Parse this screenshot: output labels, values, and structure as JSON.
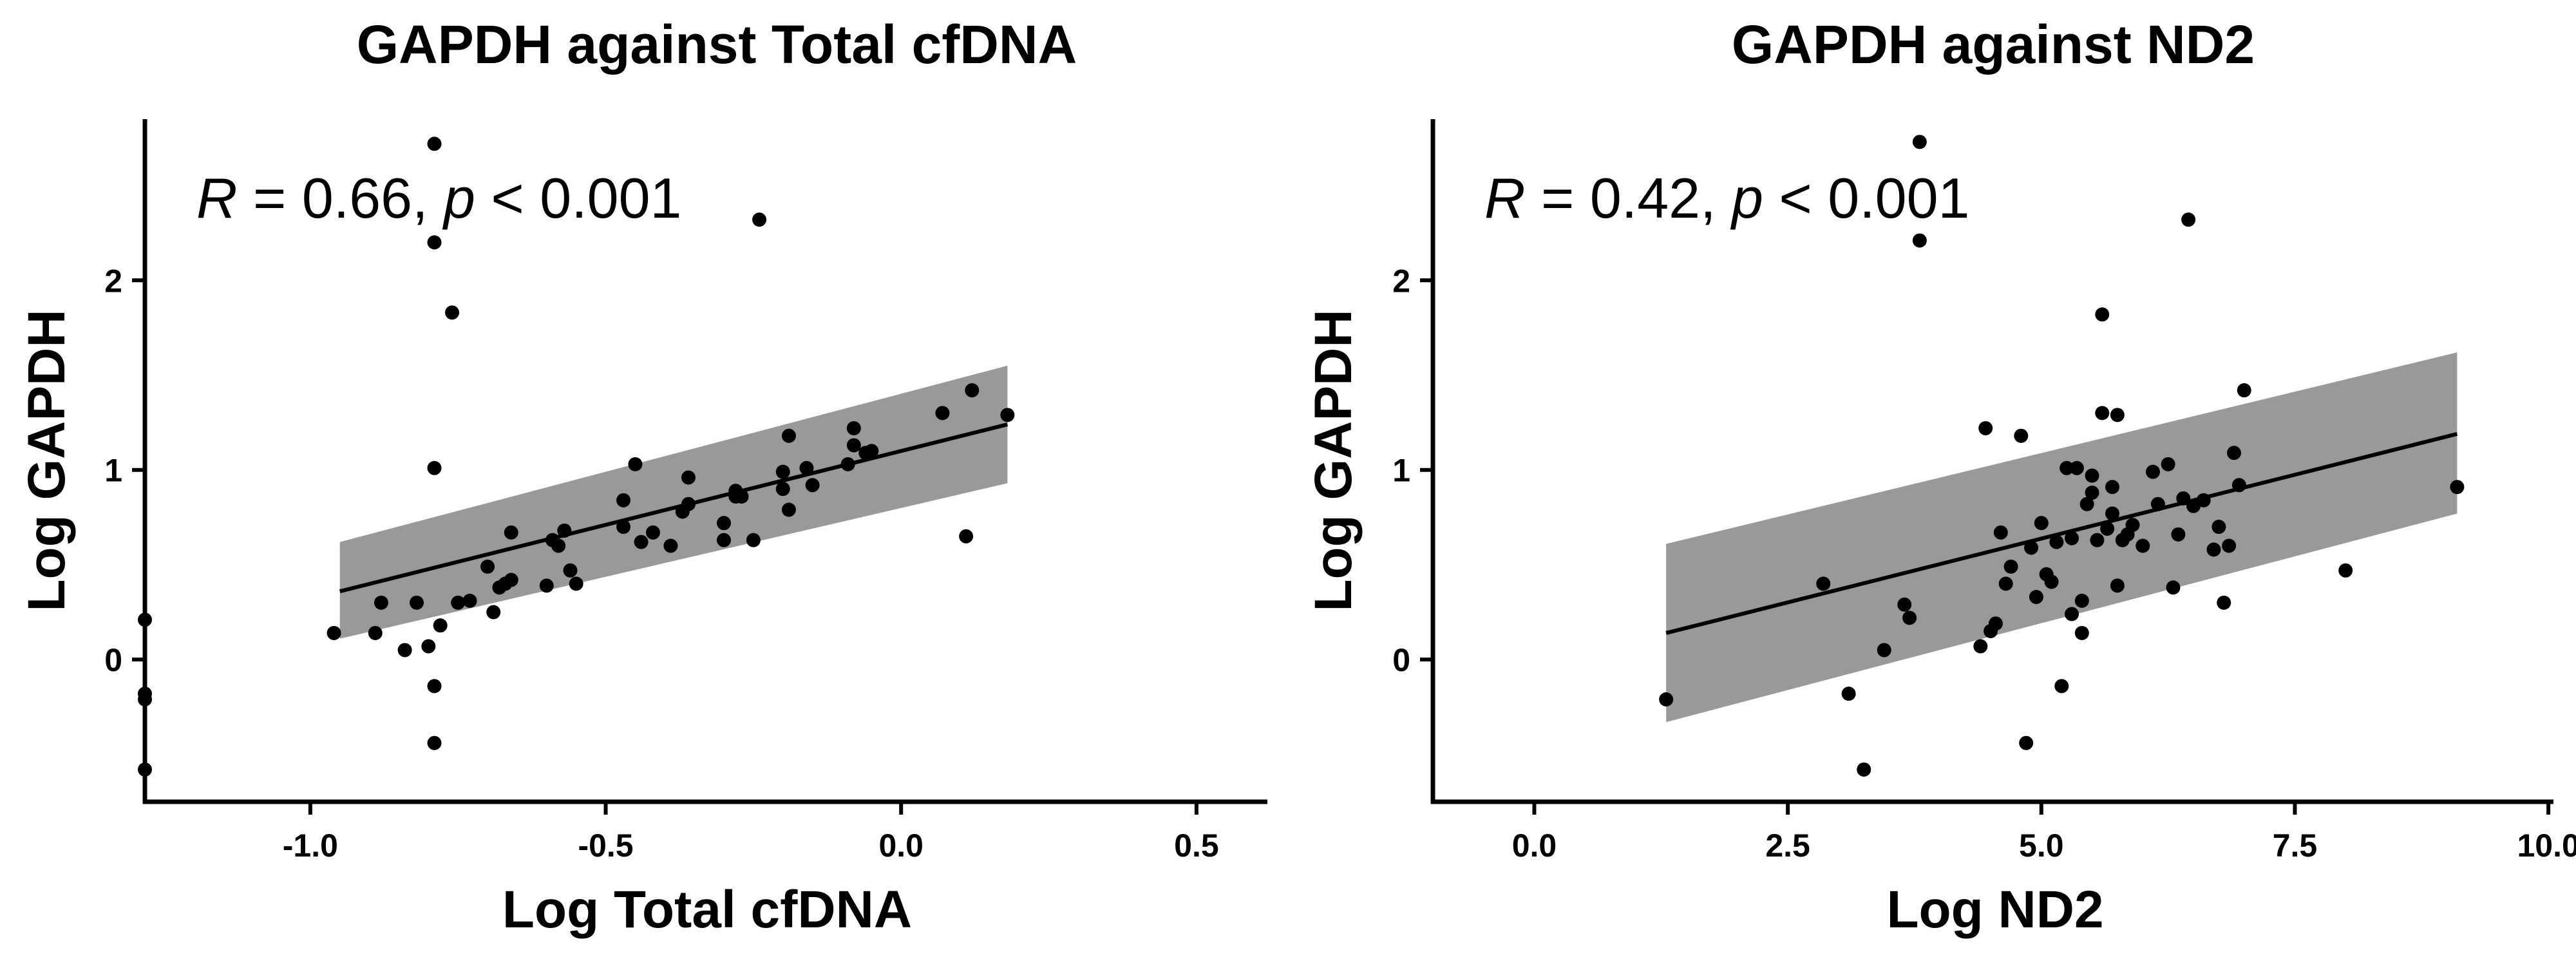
{
  "chart_data": [
    {
      "type": "scatter",
      "title": "GAPDH against Total cfDNA",
      "xlabel": "Log Total cfDNA",
      "ylabel": "Log GAPDH",
      "annotation": {
        "r_symbol": "R",
        "r_text": " = 0.66, ",
        "p_symbol": "p",
        "p_text": " < 0.001"
      },
      "xlim": [
        -1.28,
        0.62
      ],
      "ylim": [
        -0.75,
        2.85
      ],
      "xticks": [
        -1.0,
        -0.5,
        0.0,
        0.5
      ],
      "xtick_labels": [
        "-1.0",
        "-0.5",
        "0.0",
        "0.5"
      ],
      "yticks": [
        0,
        1,
        2
      ],
      "ytick_labels": [
        "0",
        "1",
        "2"
      ],
      "grid": false,
      "regression": {
        "x": [
          -0.95,
          0.18
        ],
        "y": [
          0.36,
          1.24
        ]
      },
      "confidence_band": {
        "x": [
          -0.95,
          0.18
        ],
        "lower": [
          0.11,
          0.93
        ],
        "upper": [
          0.62,
          1.55
        ]
      },
      "x": [
        -1.28,
        -1.28,
        -1.28,
        -1.28,
        -0.96,
        -0.89,
        -0.88,
        -0.84,
        -0.82,
        -0.8,
        -0.79,
        -0.79,
        -0.79,
        -0.79,
        -0.79,
        -0.78,
        -0.76,
        -0.75,
        -0.73,
        -0.7,
        -0.69,
        -0.68,
        -0.67,
        -0.66,
        -0.66,
        -0.6,
        -0.59,
        -0.58,
        -0.57,
        -0.56,
        -0.55,
        -0.47,
        -0.47,
        -0.45,
        -0.44,
        -0.42,
        -0.39,
        -0.37,
        -0.36,
        -0.36,
        -0.3,
        -0.3,
        -0.28,
        -0.28,
        -0.27,
        -0.25,
        -0.24,
        -0.2,
        -0.2,
        -0.19,
        -0.19,
        -0.16,
        -0.15,
        -0.09,
        -0.08,
        -0.08,
        -0.06,
        -0.05,
        0.07,
        0.11,
        0.12,
        0.18
      ],
      "y": [
        0.21,
        -0.18,
        -0.21,
        -0.58,
        0.14,
        0.14,
        0.3,
        0.05,
        0.3,
        0.07,
        2.72,
        2.2,
        1.01,
        -0.14,
        -0.44,
        0.18,
        1.83,
        0.3,
        0.31,
        0.49,
        0.25,
        0.38,
        0.4,
        0.42,
        0.67,
        0.39,
        0.63,
        0.6,
        0.68,
        0.47,
        0.4,
        0.84,
        0.7,
        1.03,
        0.62,
        0.67,
        0.6,
        0.78,
        0.96,
        0.82,
        0.63,
        0.72,
        0.89,
        0.86,
        0.86,
        0.63,
        2.32,
        0.99,
        0.9,
        1.18,
        0.79,
        1.01,
        0.92,
        1.03,
        1.22,
        1.13,
        1.09,
        1.1,
        1.3,
        0.65,
        1.42,
        1.29
      ]
    },
    {
      "type": "scatter",
      "title": "GAPDH against ND2",
      "xlabel": "Log ND2",
      "ylabel": "Log GAPDH",
      "annotation": {
        "r_symbol": "R",
        "r_text": " = 0.42, ",
        "p_symbol": "p",
        "p_text": " < 0.001"
      },
      "xlim": [
        -1.0,
        10.05
      ],
      "ylim": [
        -0.75,
        2.85
      ],
      "xticks": [
        0.0,
        2.5,
        5.0,
        7.5,
        10.0
      ],
      "xtick_labels": [
        "0.0",
        "2.5",
        "5.0",
        "7.5",
        "10.0"
      ],
      "yticks": [
        0,
        1,
        2
      ],
      "ytick_labels": [
        "0",
        "1",
        "2"
      ],
      "grid": false,
      "regression": {
        "x": [
          1.3,
          9.1
        ],
        "y": [
          0.14,
          1.19
        ]
      },
      "confidence_band": {
        "x": [
          1.3,
          9.1
        ],
        "lower": [
          -0.33,
          0.77
        ],
        "upper": [
          0.61,
          1.62
        ]
      },
      "x": [
        1.3,
        2.85,
        3.1,
        3.25,
        3.45,
        3.65,
        3.7,
        3.8,
        3.8,
        4.4,
        4.45,
        4.5,
        4.55,
        4.6,
        4.65,
        4.7,
        4.8,
        4.85,
        4.9,
        4.95,
        5.0,
        5.05,
        5.1,
        5.15,
        5.2,
        5.25,
        5.3,
        5.3,
        5.35,
        5.4,
        5.4,
        5.45,
        5.5,
        5.5,
        5.55,
        5.6,
        5.6,
        5.65,
        5.7,
        5.7,
        5.75,
        5.75,
        5.8,
        5.85,
        5.9,
        6.0,
        6.1,
        6.15,
        6.25,
        6.3,
        6.35,
        6.4,
        6.45,
        6.5,
        6.6,
        6.7,
        6.75,
        6.8,
        6.85,
        6.9,
        6.95,
        7.0,
        8.0,
        9.1
      ],
      "y": [
        -0.21,
        0.4,
        -0.18,
        -0.58,
        0.05,
        0.29,
        0.22,
        2.73,
        2.21,
        0.07,
        1.22,
        0.15,
        0.19,
        0.67,
        0.4,
        0.49,
        1.18,
        -0.44,
        0.59,
        0.33,
        0.72,
        0.45,
        0.41,
        0.62,
        -0.14,
        1.01,
        0.24,
        0.64,
        1.01,
        0.14,
        0.31,
        0.82,
        0.88,
        0.97,
        0.63,
        1.3,
        1.82,
        0.69,
        0.91,
        0.77,
        1.29,
        0.39,
        0.63,
        0.66,
        0.71,
        0.6,
        0.99,
        0.82,
        1.03,
        0.38,
        0.66,
        0.85,
        2.32,
        0.81,
        0.84,
        0.58,
        0.7,
        0.3,
        0.6,
        1.09,
        0.92,
        1.42,
        0.47,
        0.91
      ]
    }
  ]
}
